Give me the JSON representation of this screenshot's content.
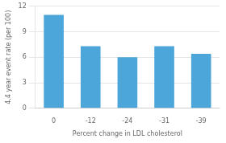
{
  "chart_data": {
    "type": "bar",
    "categories": [
      "0",
      "-12",
      "-24",
      "-31",
      "-39"
    ],
    "values": [
      11.0,
      7.3,
      6.0,
      7.3,
      6.4
    ],
    "color": "#4da6d9",
    "xlabel": "Percent change in LDL cholesterol",
    "ylabel": "4.4 year event rate (per 100)",
    "ylim": [
      0,
      12
    ],
    "yticks": [
      0,
      3,
      6,
      9,
      12
    ],
    "grid": true
  }
}
